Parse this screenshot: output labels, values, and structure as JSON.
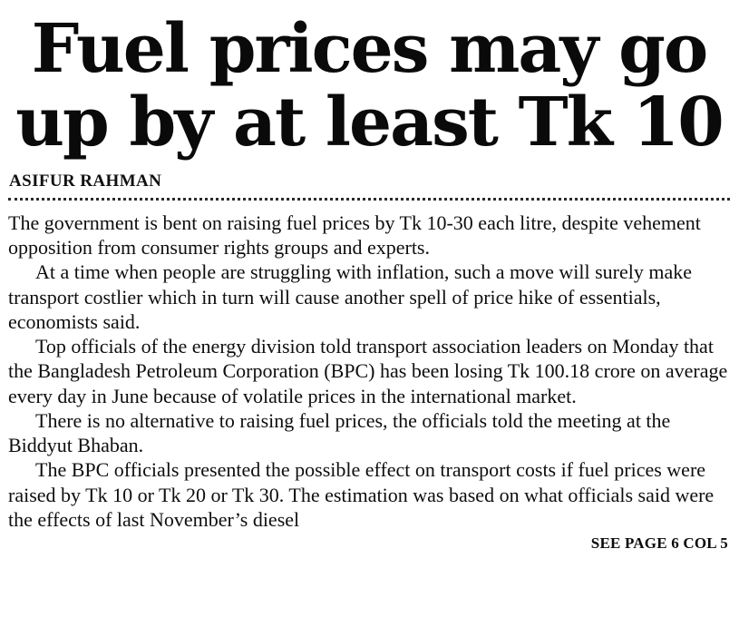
{
  "colors": {
    "background": "#ffffff",
    "ink": "#0e0e0e"
  },
  "article": {
    "headline": "Fuel prices may go up by at least Tk 10",
    "byline": "ASIFUR RAHMAN",
    "paragraphs": [
      "The government is bent on raising fuel prices by Tk 10-30 each litre, despite vehement opposition from consumer rights groups and experts.",
      "At a time when people are struggling with inflation, such a move will surely make transport costlier which in turn will cause another spell of price hike of essentials, economists said.",
      "Top officials of the energy division told transport association leaders on Monday that the Bangladesh Petroleum Corporation (BPC) has been losing Tk 100.18 crore on average every day in June because of volatile prices in the international market.",
      "There is no alternative to raising fuel prices, the officials told the meeting at the Biddyut Bhaban.",
      "The BPC officials presented the possible effect on transport costs if fuel prices were raised by Tk 10 or Tk 20 or Tk 30. The estimation was based on what officials said were the effects of last November’s diesel"
    ],
    "continuation": "SEE PAGE 6 COL 5"
  }
}
